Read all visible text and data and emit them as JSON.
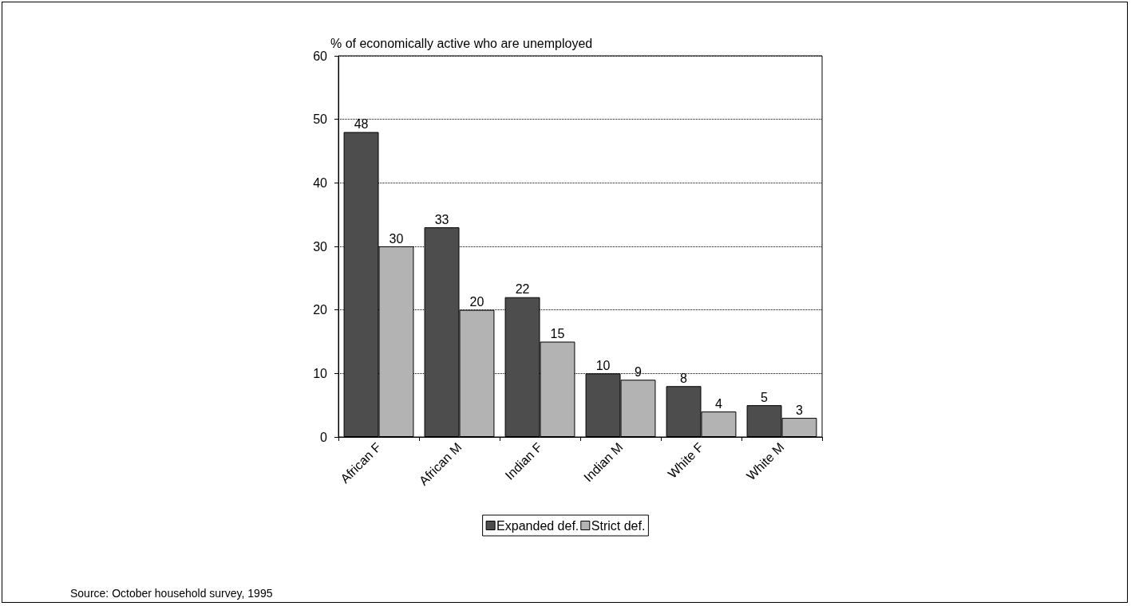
{
  "chart_data": {
    "type": "bar",
    "ylabel": "% of economically active who are unemployed",
    "categories": [
      "African F",
      "African M",
      "Indian F",
      "Indian M",
      "White F",
      "White M"
    ],
    "series": [
      {
        "name": "Expanded def.",
        "color": "#4d4d4d",
        "values": [
          48,
          33,
          22,
          10,
          8,
          5
        ]
      },
      {
        "name": "Strict def.",
        "color": "#b3b3b3",
        "values": [
          30,
          20,
          15,
          9,
          4,
          3
        ]
      }
    ],
    "ylim": [
      0,
      60
    ],
    "yticks": [
      0,
      10,
      20,
      30,
      40,
      50,
      60
    ],
    "grid": "y",
    "legend": "bottom",
    "data_labels": true,
    "annotations": [
      "Source: October household survey, 1995"
    ]
  }
}
